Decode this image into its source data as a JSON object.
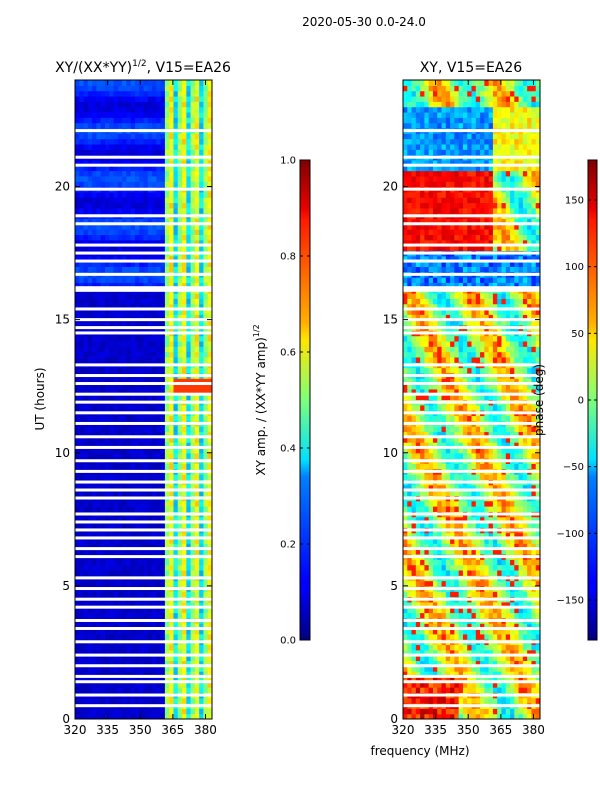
{
  "suptitle": "2020-05-30 0.0-24.0",
  "chart_data": [
    {
      "type": "heatmap",
      "title_main": "XY/(XX*YY)",
      "title_sup": "1/2",
      "title_tail": ", V15=EA26",
      "xlabel": "",
      "ylabel": "UT (hours)",
      "xlim": [
        320,
        383
      ],
      "ylim": [
        0,
        24
      ],
      "xticks": [
        320,
        335,
        350,
        365,
        380
      ],
      "yticks": [
        0,
        5,
        10,
        15,
        20
      ],
      "bright_band_start_mhz": 360,
      "colorbar": {
        "label": "XY amp. / (XX*YY amp)",
        "label_sup": "1/2",
        "range": [
          0.0,
          1.0
        ],
        "ticks": [
          "0.0",
          "0.2",
          "0.4",
          "0.6",
          "0.8",
          "1.0"
        ]
      }
    },
    {
      "type": "heatmap",
      "title": "XY, V15=EA26",
      "xlabel": "frequency (MHz)",
      "ylabel": "",
      "xlim": [
        320,
        383
      ],
      "ylim": [
        0,
        24
      ],
      "xticks": [
        320,
        335,
        350,
        365,
        380
      ],
      "yticks": [
        0,
        5,
        10,
        15,
        20
      ],
      "colorbar": {
        "label": "phase (deg)",
        "range": [
          -180,
          180
        ],
        "ticks": [
          "−150",
          "−100",
          "−50",
          "0",
          "50",
          "100",
          "150"
        ]
      }
    }
  ]
}
